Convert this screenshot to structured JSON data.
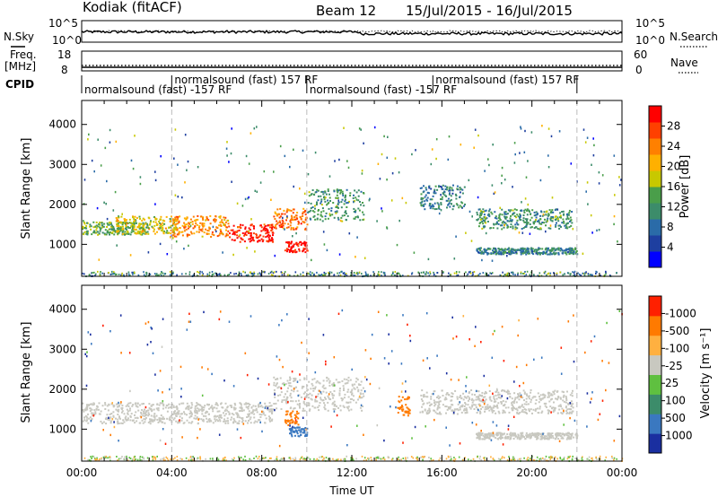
{
  "header": {
    "station": "Kodiak (fitACF)",
    "beam": "Beam 12",
    "date_range": "15/Jul/2015 - 16/Jul/2015"
  },
  "left_labels": {
    "nsky": "N.Sky",
    "freq_line1": "Freq.",
    "freq_line2": "[MHz]",
    "cpid": "CPID"
  },
  "right_labels": {
    "nsearch": "N.Search",
    "nave": "Nave"
  },
  "noise_panel": {
    "ticks_left": [
      "10^5",
      "10^0"
    ],
    "ticks_right": [
      "10^5",
      "10^0"
    ]
  },
  "freq_panel": {
    "ticks_left": [
      "18",
      "8"
    ],
    "ticks_right": [
      "60",
      "0"
    ]
  },
  "cpid": [
    {
      "label": "normalsound (fast) -157 RF",
      "start_hour": 0.0,
      "end_hour": 4.0
    },
    {
      "label": "normalsound (fast) 157 RF",
      "start_hour": 4.0,
      "end_hour": 10.0
    },
    {
      "label": "normalsound (fast) -157 RF",
      "start_hour": 10.0,
      "end_hour": 15.6
    },
    {
      "label": "normalsound (fast) 157 RF",
      "start_hour": 15.6,
      "end_hour": 22.0
    }
  ],
  "chart_data": [
    {
      "type": "heatmap",
      "name": "power",
      "xlabel": "",
      "ylabel": "Slant Range [km]",
      "xlim_hours": [
        0,
        24
      ],
      "ylim": [
        200,
        4600
      ],
      "yticks": [
        1000,
        2000,
        3000,
        4000
      ],
      "colorbar": {
        "label": "Power [dB]",
        "ticks": [
          "4",
          "8",
          "12",
          "16",
          "20",
          "24",
          "28"
        ],
        "colors": [
          "#0000ff",
          "#1e3fa0",
          "#2a6ba8",
          "#3c8c6a",
          "#4a9e4a",
          "#c8c800",
          "#ffb000",
          "#ff8000",
          "#ff4000",
          "#ff0000"
        ]
      },
      "echo_bands": [
        {
          "hour_start": 0.0,
          "hour_end": 3.0,
          "range_center": 1420,
          "range_width": 160,
          "level": 12
        },
        {
          "hour_start": 1.5,
          "hour_end": 4.2,
          "range_center": 1500,
          "range_width": 220,
          "level": 16
        },
        {
          "hour_start": 4.0,
          "hour_end": 6.5,
          "range_center": 1470,
          "range_width": 260,
          "level": 20
        },
        {
          "hour_start": 6.5,
          "hour_end": 8.5,
          "range_center": 1300,
          "range_width": 220,
          "level": 26
        },
        {
          "hour_start": 8.5,
          "hour_end": 10.0,
          "range_center": 1650,
          "range_width": 260,
          "level": 22
        },
        {
          "hour_start": 9.0,
          "hour_end": 10.0,
          "range_center": 950,
          "range_width": 140,
          "level": 28
        },
        {
          "hour_start": 10.0,
          "hour_end": 12.5,
          "range_center": 2000,
          "range_width": 400,
          "level": 10
        },
        {
          "hour_start": 15.0,
          "hour_end": 17.0,
          "range_center": 2200,
          "range_width": 300,
          "level": 8
        },
        {
          "hour_start": 17.5,
          "hour_end": 21.8,
          "range_center": 1650,
          "range_width": 250,
          "level": 10
        },
        {
          "hour_start": 17.5,
          "hour_end": 22.0,
          "range_center": 850,
          "range_width": 80,
          "level": 8
        }
      ]
    },
    {
      "type": "heatmap",
      "name": "velocity",
      "xlabel": "Time UT",
      "ylabel": "Slant Range [km]",
      "xlim_hours": [
        0,
        24
      ],
      "ylim": [
        200,
        4600
      ],
      "yticks": [
        1000,
        2000,
        3000,
        4000
      ],
      "xticks": [
        "00:00",
        "04:00",
        "08:00",
        "12:00",
        "16:00",
        "20:00",
        "00:00"
      ],
      "colorbar": {
        "label": "Velocity [m s⁻¹]",
        "ticks": [
          "1000",
          "500",
          "100",
          "25",
          "-25",
          "-100",
          "-500",
          "-1000"
        ],
        "colors": [
          "#1a2fa0",
          "#3a78c0",
          "#3c8c6a",
          "#5fc040",
          "#c8c8c0",
          "#ffb040",
          "#ff7a00",
          "#ff2000"
        ]
      },
      "echo_bands": [
        {
          "hour_start": 0.0,
          "hour_end": 8.5,
          "range_center": 1420,
          "range_width": 260,
          "value": 0
        },
        {
          "hour_start": 8.5,
          "hour_end": 12.5,
          "range_center": 1900,
          "range_width": 420,
          "value": 0
        },
        {
          "hour_start": 9.0,
          "hour_end": 9.6,
          "range_center": 1300,
          "range_width": 180,
          "value": -300
        },
        {
          "hour_start": 9.2,
          "hour_end": 10.0,
          "range_center": 950,
          "range_width": 120,
          "value": 150
        },
        {
          "hour_start": 14.0,
          "hour_end": 14.6,
          "range_center": 1600,
          "range_width": 250,
          "value": -300
        },
        {
          "hour_start": 15.0,
          "hour_end": 21.8,
          "range_center": 1700,
          "range_width": 300,
          "value": 0
        },
        {
          "hour_start": 17.5,
          "hour_end": 22.0,
          "range_center": 850,
          "range_width": 80,
          "value": 0
        }
      ]
    }
  ]
}
